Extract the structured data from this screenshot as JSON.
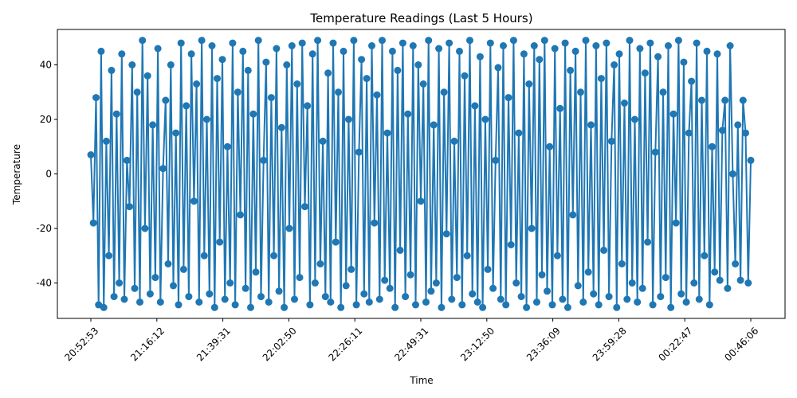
{
  "chart_data": {
    "type": "line",
    "title": "Temperature Readings (Last 5 Hours)",
    "xlabel": "Time",
    "ylabel": "Temperature",
    "x_range": [
      "20:52:53",
      "00:46:06"
    ],
    "x_ticks": [
      "20:52:53",
      "21:16:12",
      "21:39:31",
      "22:02:50",
      "22:26:11",
      "22:49:31",
      "23:12:50",
      "23:36:09",
      "23:59:28",
      "00:22:47",
      "00:46:06"
    ],
    "ylim": [
      -53,
      53
    ],
    "y_ticks": [
      -40,
      -20,
      0,
      20,
      40
    ],
    "grid": false,
    "marker": "circle",
    "series": [
      {
        "color": "#1f77b4",
        "values": [
          7,
          -18,
          28,
          -48,
          45,
          -49,
          12,
          -30,
          38,
          -45,
          22,
          -40,
          44,
          -46,
          5,
          -12,
          40,
          -42,
          30,
          -47,
          49,
          -20,
          36,
          -44,
          18,
          -38,
          46,
          -47,
          2,
          27,
          -33,
          40,
          -41,
          15,
          -48,
          48,
          -35,
          25,
          -45,
          44,
          -10,
          33,
          -47,
          49,
          -30,
          20,
          -44,
          47,
          -49,
          35,
          -25,
          42,
          -46,
          10,
          -40,
          48,
          -48,
          30,
          -15,
          45,
          -42,
          38,
          -49,
          22,
          -36,
          49,
          -45,
          5,
          41,
          -47,
          28,
          -30,
          46,
          -43,
          17,
          -49,
          40,
          -20,
          47,
          -46,
          33,
          -38,
          48,
          -12,
          25,
          -48,
          44,
          -40,
          49,
          -33,
          12,
          -45,
          37,
          -47,
          48,
          -25,
          30,
          -49,
          45,
          -41,
          20,
          -35,
          49,
          -48,
          8,
          42,
          -44,
          35,
          -47,
          47,
          -18,
          29,
          -46,
          49,
          -39,
          15,
          -42,
          45,
          -49,
          38,
          -28,
          48,
          -45,
          22,
          -37,
          47,
          -48,
          40,
          -10,
          33,
          -47,
          49,
          -43,
          18,
          -40,
          46,
          -49,
          30,
          -22,
          48,
          -46,
          12,
          -38,
          45,
          -48,
          36,
          -30,
          49,
          -44,
          25,
          -47,
          43,
          -49,
          20,
          -35,
          48,
          -42,
          5,
          39,
          -46,
          47,
          -48,
          28,
          -26,
          49,
          -40,
          15,
          -45,
          44,
          -49,
          33,
          -20,
          47,
          -47,
          42,
          -37,
          49,
          -43,
          10,
          -48,
          46,
          -30,
          24,
          -46,
          48,
          -49,
          38,
          -15,
          45,
          -41,
          30,
          -47,
          49,
          -36,
          18,
          -44,
          47,
          -48,
          35,
          -28,
          48,
          -45,
          12,
          40,
          -49,
          44,
          -33,
          26,
          -46,
          49,
          -40,
          20,
          -47,
          46,
          -42,
          37,
          -25,
          48,
          -48,
          8,
          43,
          -45,
          30,
          -38,
          47,
          -49,
          22,
          -18,
          49,
          -44,
          41,
          -47,
          15,
          34,
          -40,
          48,
          -46,
          27,
          -30,
          45,
          -48,
          10,
          -36,
          44,
          -39,
          16,
          27,
          -42,
          47,
          0,
          -33,
          18,
          -39,
          27,
          15,
          -40,
          5
        ]
      }
    ]
  }
}
